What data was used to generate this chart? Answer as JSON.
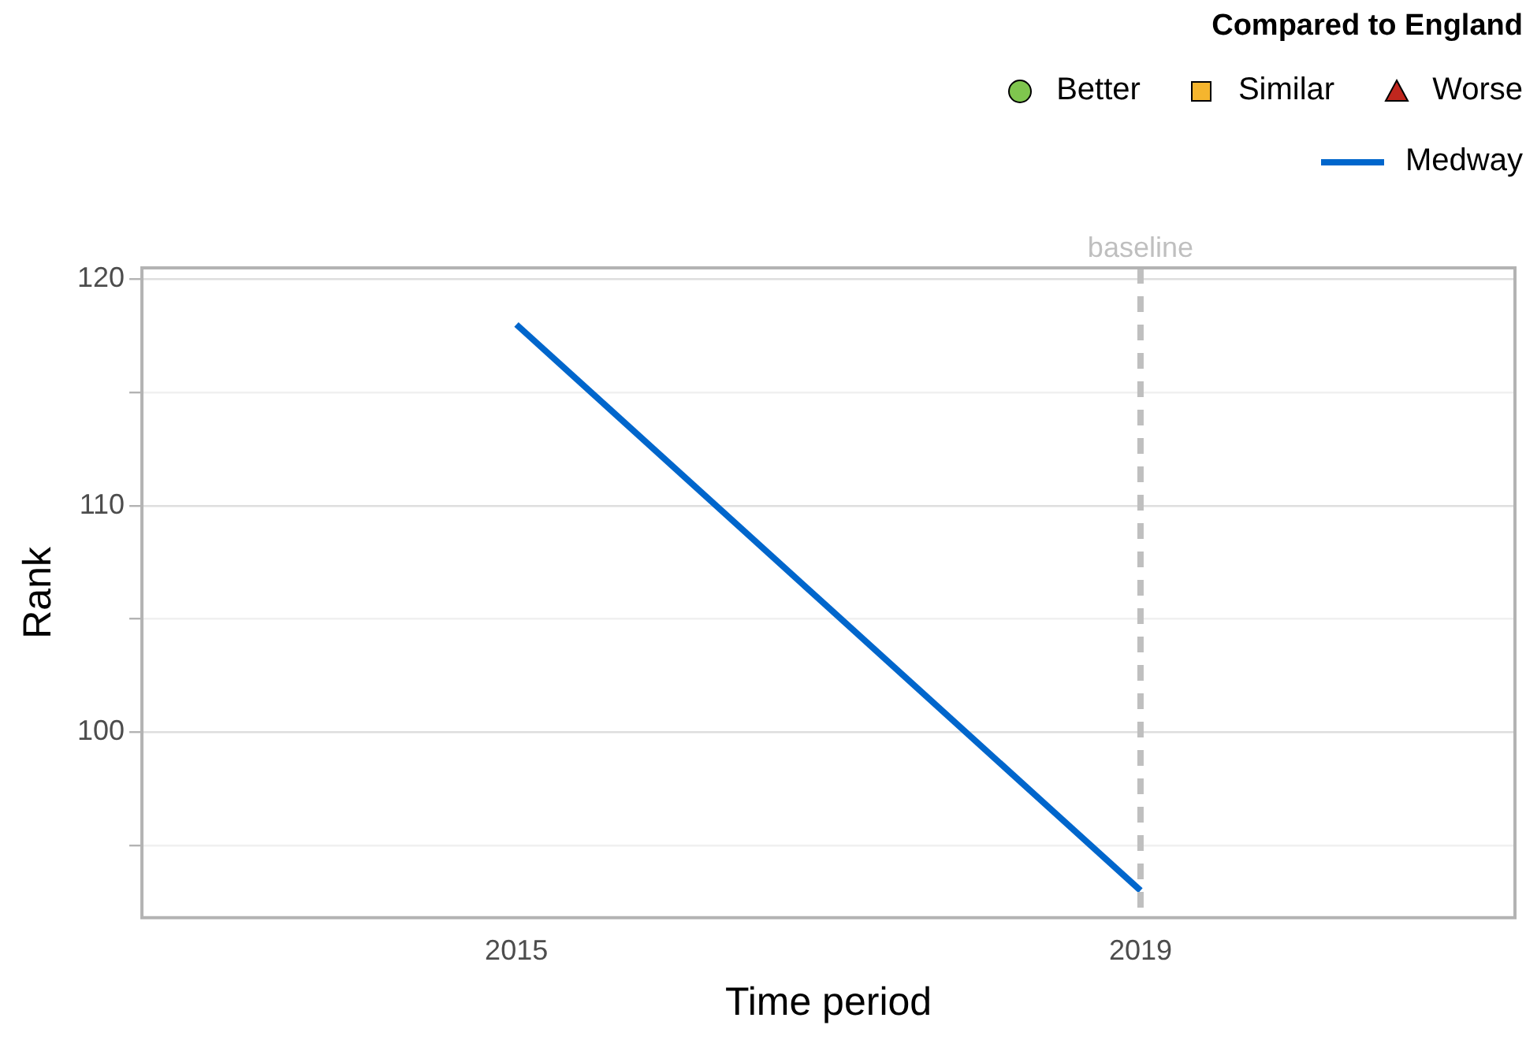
{
  "chart_data": {
    "type": "line",
    "xlabel": "Time period",
    "ylabel": "Rank",
    "legend_title": "Compared to England",
    "x": [
      2015,
      2019
    ],
    "series": [
      {
        "name": "Better",
        "type": "scatter",
        "marker": "circle",
        "color": "#7fc64e",
        "values": [
          null,
          null
        ]
      },
      {
        "name": "Similar",
        "type": "scatter",
        "marker": "square",
        "color": "#f5b52e",
        "values": [
          null,
          null
        ]
      },
      {
        "name": "Worse",
        "type": "scatter",
        "marker": "triangle",
        "color": "#c0271e",
        "values": [
          null,
          null
        ]
      },
      {
        "name": "Medway",
        "type": "line",
        "color": "#0066cc",
        "values": [
          118,
          93
        ]
      }
    ],
    "xlim": [
      2012.6,
      2021.4
    ],
    "xticks": [
      2015,
      2019
    ],
    "ylim": [
      91.8,
      120.5
    ],
    "yticks": [
      {
        "value": 95,
        "label": null
      },
      100,
      {
        "value": 105,
        "label": null
      },
      110,
      {
        "value": 115,
        "label": null
      },
      120
    ],
    "ref_lines": [
      {
        "axis": "x",
        "value": 2019,
        "label": "baseline",
        "color": "#bfbfbf",
        "line_style": "dashed"
      }
    ],
    "grid": "y",
    "legend": "top right",
    "marker": "none",
    "line_style": "solid"
  }
}
